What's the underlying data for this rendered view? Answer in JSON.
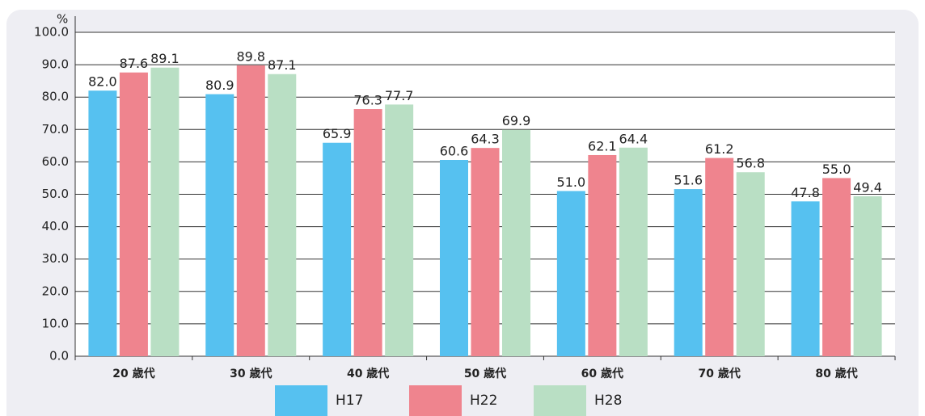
{
  "chart_data": {
    "type": "bar",
    "y_unit": "%",
    "categories": [
      "20 歳代",
      "30 歳代",
      "40 歳代",
      "50 歳代",
      "60 歳代",
      "70 歳代",
      "80 歳代"
    ],
    "series": [
      {
        "name": "H17",
        "color": "#56c1f0",
        "values": [
          82.0,
          80.9,
          65.9,
          60.6,
          51.0,
          51.6,
          47.8
        ],
        "value_labels": [
          "82.0",
          "80.9",
          "65.9",
          "60.6",
          "51.0",
          "51.6",
          "47.8"
        ]
      },
      {
        "name": "H22",
        "color": "#ef848e",
        "values": [
          87.6,
          89.8,
          76.3,
          64.3,
          62.1,
          61.2,
          55.0
        ],
        "value_labels": [
          "87.6",
          "89.8",
          "76.3",
          "64.3",
          "62.1",
          "61.2",
          "55.0"
        ]
      },
      {
        "name": "H28",
        "color": "#b9dfc4",
        "values": [
          89.1,
          87.1,
          77.7,
          69.9,
          64.4,
          56.8,
          49.4
        ],
        "value_labels": [
          "89.1",
          "87.1",
          "77.7",
          "69.9",
          "64.4",
          "56.8",
          "49.4"
        ]
      }
    ],
    "ylim": [
      0,
      100
    ],
    "yticks": [
      {
        "value": 0,
        "label": "0.0"
      },
      {
        "value": 10,
        "label": "10.0"
      },
      {
        "value": 20,
        "label": "20.0"
      },
      {
        "value": 30,
        "label": "30.0"
      },
      {
        "value": 40,
        "label": "40.0"
      },
      {
        "value": 50,
        "label": "50.0"
      },
      {
        "value": 60,
        "label": "60.0"
      },
      {
        "value": 70,
        "label": "70.0"
      },
      {
        "value": 80,
        "label": "80.0"
      },
      {
        "value": 90,
        "label": "90.0"
      },
      {
        "value": 100,
        "label": "100.0"
      }
    ],
    "grid": true
  }
}
